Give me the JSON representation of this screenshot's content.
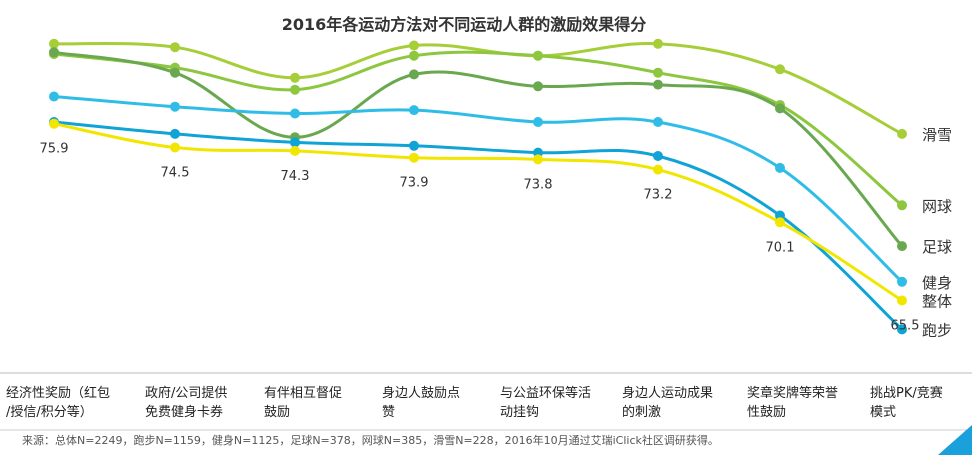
{
  "chart_data": {
    "type": "line",
    "title": "2016年各运动方法对不同运动人群的激励效果得分",
    "categories": [
      [
        "经济性奖励（红包",
        "/授信/积分等）"
      ],
      [
        "政府/公司提供",
        "免费健身卡券"
      ],
      [
        "有伴相互督促",
        "鼓励"
      ],
      [
        "身边人鼓励点",
        "赞"
      ],
      [
        "与公益环保等活",
        "动挂钩"
      ],
      [
        "身边人运动成果",
        "的刺激"
      ],
      [
        "奖章奖牌等荣誉",
        "性鼓励"
      ],
      [
        "挑战PK/竞赛",
        "模式"
      ]
    ],
    "ylim": [
      62,
      82
    ],
    "grid": false,
    "legend": "right",
    "series": [
      {
        "name": "滑雪",
        "color": "#A6CE39",
        "values": [
          80.6,
          80.4,
          78.6,
          80.5,
          79.9,
          80.6,
          79.1,
          75.3
        ]
      },
      {
        "name": "网球",
        "color": "#8DC63F",
        "values": [
          80.0,
          79.2,
          77.9,
          79.9,
          79.9,
          78.9,
          77.0,
          71.1
        ]
      },
      {
        "name": "足球",
        "color": "#6AA84F",
        "values": [
          80.1,
          78.9,
          75.1,
          78.8,
          78.1,
          78.2,
          76.8,
          68.7
        ]
      },
      {
        "name": "健身",
        "color": "#2FBDE8",
        "values": [
          77.5,
          76.9,
          76.5,
          76.7,
          76.0,
          76.0,
          73.3,
          66.6
        ]
      },
      {
        "name": "跑步",
        "color": "#0FA3D6",
        "values": [
          76.0,
          75.3,
          74.8,
          74.6,
          74.2,
          74.0,
          70.5,
          63.8
        ]
      },
      {
        "name": "整体",
        "color": "#F2E600",
        "values": [
          75.9,
          74.5,
          74.3,
          73.9,
          73.8,
          73.2,
          70.1,
          65.5
        ]
      }
    ],
    "data_labels": [
      "75.9",
      "74.5",
      "74.3",
      "73.9",
      "73.8",
      "73.2",
      "70.1",
      "65.5"
    ]
  },
  "source": "来源：总体N=2249，跑步N=1159，健身N=1125，足球N=378，网球N=385，滑雪N=228，2016年10月通过艾瑞iClick社区调研获得。"
}
